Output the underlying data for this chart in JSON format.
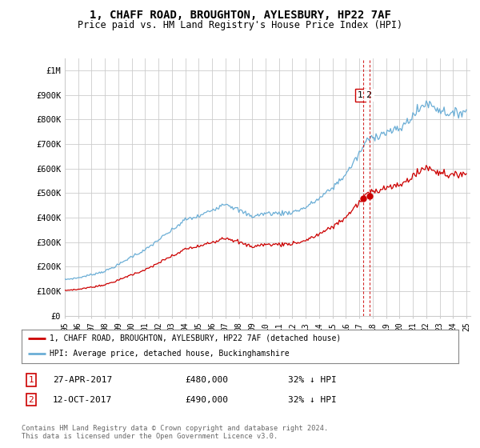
{
  "title": "1, CHAFF ROAD, BROUGHTON, AYLESBURY, HP22 7AF",
  "subtitle": "Price paid vs. HM Land Registry's House Price Index (HPI)",
  "title_fontsize": 10,
  "subtitle_fontsize": 8.5,
  "background_color": "#ffffff",
  "grid_color": "#cccccc",
  "hpi_color": "#6baed6",
  "price_color": "#cc0000",
  "vline_color": "#cc0000",
  "ylim": [
    0,
    1050000
  ],
  "yticks": [
    0,
    100000,
    200000,
    300000,
    400000,
    500000,
    600000,
    700000,
    800000,
    900000,
    1000000
  ],
  "ytick_labels": [
    "£0",
    "£100K",
    "£200K",
    "£300K",
    "£400K",
    "£500K",
    "£600K",
    "£700K",
    "£800K",
    "£900K",
    "£1M"
  ],
  "legend_label_price": "1, CHAFF ROAD, BROUGHTON, AYLESBURY, HP22 7AF (detached house)",
  "legend_label_hpi": "HPI: Average price, detached house, Buckinghamshire",
  "sale1_date": "27-APR-2017",
  "sale1_price": "£480,000",
  "sale1_hpi": "32% ↓ HPI",
  "sale2_date": "12-OCT-2017",
  "sale2_price": "£490,000",
  "sale2_hpi": "32% ↓ HPI",
  "footer": "Contains HM Land Registry data © Crown copyright and database right 2024.\nThis data is licensed under the Open Government Licence v3.0.",
  "purchase1_year": 2017.32,
  "purchase2_year": 2017.78,
  "purchase1_value": 480000,
  "purchase2_value": 490000,
  "xlim_left": 1995.0,
  "xlim_right": 2025.3
}
